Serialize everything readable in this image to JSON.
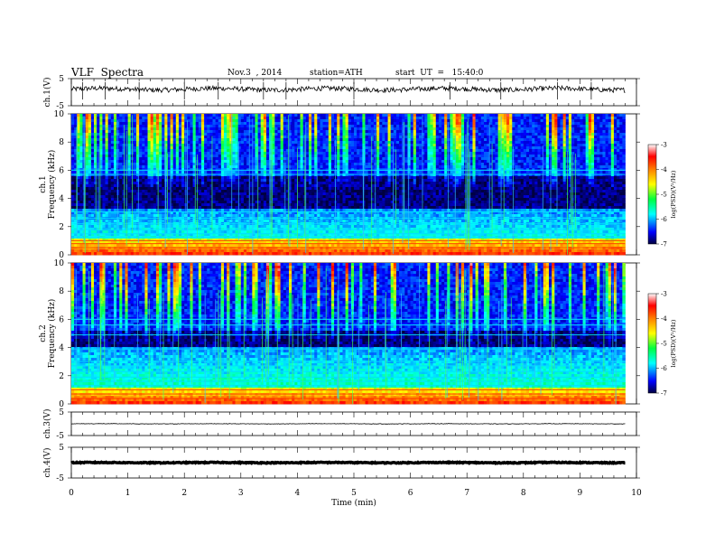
{
  "header": {
    "title": "VLF  Spectra",
    "date": "Nov.3  , 2014",
    "station": "station=ATH",
    "start": "start  UT  =   15:40:0"
  },
  "chart_data": [
    {
      "type": "line",
      "name": "ch1-waveform",
      "ylabel": "ch.1(V)",
      "ylim": [
        -5,
        5
      ],
      "yticks": [
        "5",
        "-5"
      ],
      "xlim": [
        0,
        10
      ],
      "x_extent": 9.8,
      "baseline": 1.1,
      "variation": 0.9,
      "spikes_min": [
        0.2,
        0.6,
        1.2,
        2.0,
        2.6,
        3.4,
        3.8,
        5.0,
        6.7,
        7.6,
        8.6,
        9.2
      ]
    },
    {
      "type": "heatmap",
      "name": "ch1-spectrogram",
      "ylabel": "ch.1\nFrequency (kHz)",
      "ylim": [
        0,
        10
      ],
      "yticks": [
        "0",
        "2",
        "4",
        "6",
        "8",
        "10"
      ],
      "xlim": [
        0,
        10
      ],
      "x_extent": 9.8,
      "colorbar": {
        "label": "log(PSD)(V²/Hz)",
        "range": [
          -7,
          -3
        ],
        "ticks": [
          "-3",
          "-4",
          "-5",
          "-6",
          "-7"
        ]
      },
      "dark_band_khz": [
        3.2,
        5.6
      ],
      "persistent_lines_khz": [
        5.7,
        6.0,
        3.05,
        2.6,
        2.2,
        1.8,
        1.5,
        1.25,
        1.0,
        0.8,
        0.5
      ]
    },
    {
      "type": "heatmap",
      "name": "ch2-spectrogram",
      "ylabel": "ch.2\nFrequency (kHz)",
      "ylim": [
        0,
        10
      ],
      "yticks": [
        "0",
        "2",
        "4",
        "6",
        "8",
        "10"
      ],
      "xlim": [
        0,
        10
      ],
      "x_extent": 9.8,
      "colorbar": {
        "label": "log(PSD)(V²/Hz)",
        "range": [
          -7,
          -3
        ],
        "ticks": [
          "-3",
          "-4",
          "-5",
          "-6",
          "-7"
        ]
      },
      "dark_band_khz": [
        4.0,
        5.2
      ],
      "persistent_lines_khz": [
        6.0,
        5.6,
        4.9,
        3.9,
        3.0,
        2.7,
        2.3,
        1.9,
        1.6,
        1.3,
        1.0,
        0.7,
        0.4
      ]
    },
    {
      "type": "line",
      "name": "ch3-waveform",
      "ylabel": "ch.3(V)",
      "ylim": [
        -5,
        5
      ],
      "yticks": [
        "5",
        "-5"
      ],
      "xlim": [
        0,
        10
      ],
      "x_extent": 9.8,
      "baseline": 0.0,
      "variation": 0.1
    },
    {
      "type": "line",
      "name": "ch4-waveform",
      "ylabel": "ch.4(V)",
      "ylim": [
        -5,
        5
      ],
      "yticks": [
        "5",
        "-5"
      ],
      "xlim": [
        0,
        10
      ],
      "x_extent": 9.8,
      "baseline": 0.0,
      "variation": 0.15
    }
  ],
  "xaxis": {
    "label": "Time  (min)",
    "ticks": [
      "0",
      "1",
      "2",
      "3",
      "4",
      "5",
      "6",
      "7",
      "8",
      "9",
      "10"
    ]
  },
  "colors": {
    "background": "#ffffff",
    "axis": "#000000",
    "colormap": [
      "#000040",
      "#0000ff",
      "#00ffff",
      "#00ff40",
      "#ffff00",
      "#ff8000",
      "#ff0000",
      "#ffffff"
    ]
  }
}
